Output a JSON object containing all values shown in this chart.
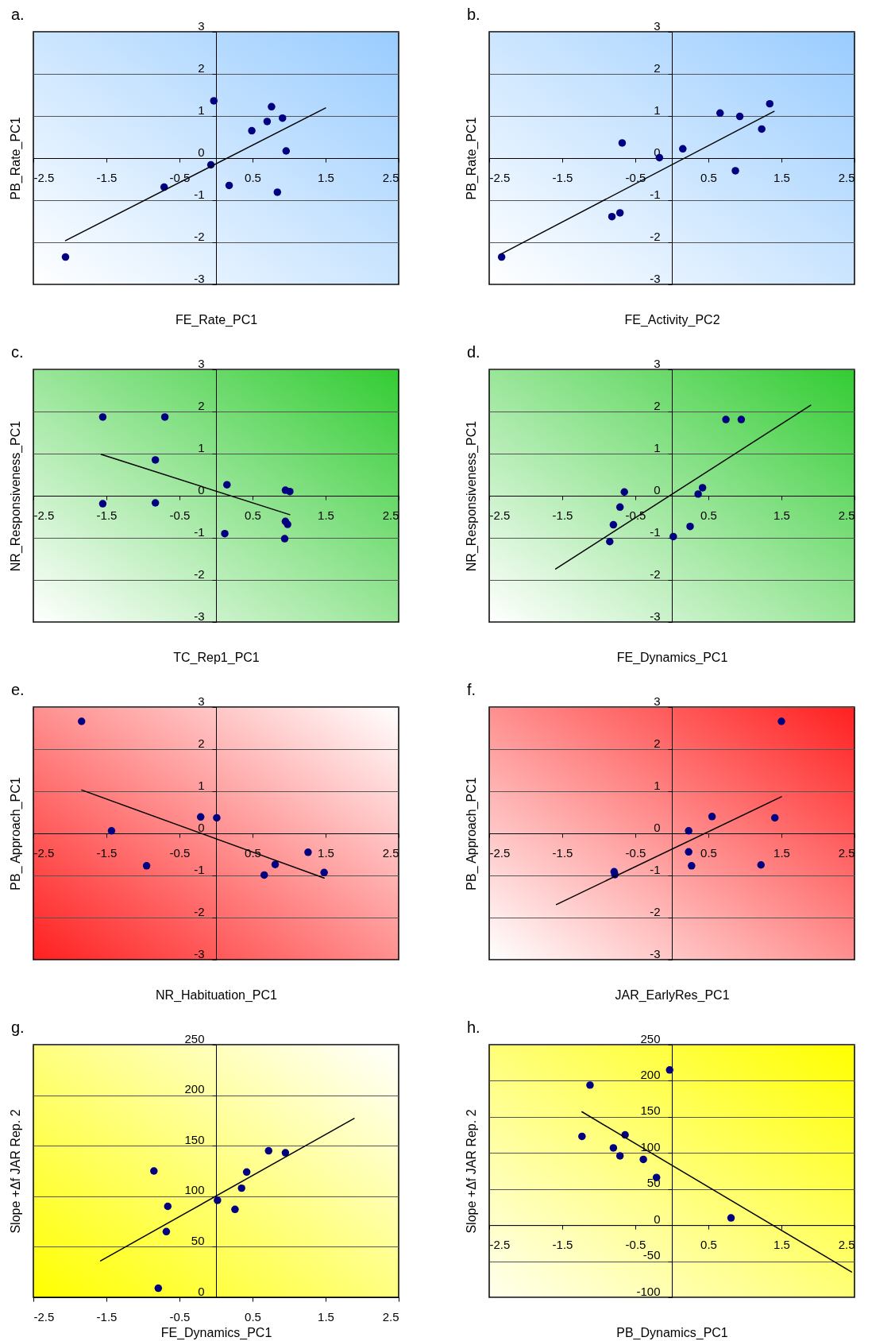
{
  "chart_data": [
    {
      "type": "scatter",
      "title": "a.",
      "xlabel": "FE_Rate_PC1",
      "ylabel": "PB_Rate_PC1",
      "xlim": [
        -2.5,
        2.5
      ],
      "ylim": [
        -3,
        3
      ],
      "xticks": [
        -2.5,
        -1.5,
        -0.5,
        0.5,
        1.5,
        2.5
      ],
      "yticks": [
        -3,
        -2,
        -1,
        0,
        1,
        2,
        3
      ],
      "grid": "y",
      "legend": false,
      "series": [
        {
          "type": "scatter",
          "marker": "circle",
          "color": "#000080",
          "x": [
            -2.06,
            -0.71,
            -0.07,
            -0.03,
            0.18,
            0.49,
            0.7,
            0.76,
            0.91,
            0.96,
            0.84
          ],
          "values": [
            -2.35,
            -0.69,
            -0.16,
            1.36,
            -0.65,
            0.65,
            0.87,
            1.22,
            0.95,
            0.17,
            -0.81
          ]
        },
        {
          "type": "line",
          "marker": "none",
          "color": "#000000",
          "x": [
            -2.06,
            1.5
          ],
          "values": [
            -1.96,
            1.19
          ]
        }
      ]
    },
    {
      "type": "scatter",
      "title": "b.",
      "xlabel": "FE_Activity_PC2",
      "ylabel": "PB_Rate_PC1",
      "xlim": [
        -2.5,
        2.5
      ],
      "ylim": [
        -3,
        3
      ],
      "xticks": [
        -2.5,
        -1.5,
        -0.5,
        0.5,
        1.5,
        2.5
      ],
      "yticks": [
        -3,
        -2,
        -1,
        0,
        1,
        2,
        3
      ],
      "grid": "y",
      "legend": false,
      "series": [
        {
          "type": "scatter",
          "marker": "circle",
          "color": "#000080",
          "x": [
            -2.33,
            -0.82,
            -0.71,
            -0.68,
            -0.17,
            0.15,
            0.66,
            0.87,
            0.93,
            1.23,
            1.34
          ],
          "values": [
            -2.35,
            -1.39,
            -1.3,
            0.36,
            0.01,
            0.22,
            1.07,
            -0.3,
            0.99,
            0.69,
            1.29
          ]
        },
        {
          "type": "line",
          "marker": "none",
          "color": "#000000",
          "x": [
            -2.33,
            1.4
          ],
          "values": [
            -2.27,
            1.11
          ]
        }
      ]
    },
    {
      "type": "scatter",
      "title": "c.",
      "xlabel": "TC_Rep1_PC1",
      "ylabel": "NR_Responsiveness_PC1",
      "xlim": [
        -2.5,
        2.5
      ],
      "ylim": [
        -3,
        3
      ],
      "xticks": [
        -2.5,
        -1.5,
        -0.5,
        0.5,
        1.5,
        2.5
      ],
      "yticks": [
        -3,
        -2,
        -1,
        0,
        1,
        2,
        3
      ],
      "grid": "y",
      "legend": false,
      "series": [
        {
          "type": "scatter",
          "marker": "circle",
          "color": "#000080",
          "x": [
            -1.55,
            -0.7,
            -0.83,
            -1.55,
            -0.83,
            0.15,
            0.12,
            0.95,
            1.01,
            0.95,
            0.98,
            0.94
          ],
          "values": [
            1.87,
            1.87,
            0.85,
            -0.19,
            -0.17,
            0.26,
            -0.9,
            0.13,
            0.1,
            -0.61,
            -0.68,
            -1.02
          ]
        },
        {
          "type": "line",
          "marker": "none",
          "color": "#000000",
          "x": [
            -1.57,
            1.01
          ],
          "values": [
            0.98,
            -0.45
          ]
        }
      ]
    },
    {
      "type": "scatter",
      "title": "d.",
      "xlabel": "FE_Dynamics_PC1",
      "ylabel": "NR_Responsiveness_PC1",
      "xlim": [
        -2.5,
        2.5
      ],
      "ylim": [
        -3,
        3
      ],
      "xticks": [
        -2.5,
        -1.5,
        -0.5,
        0.5,
        1.5,
        2.5
      ],
      "yticks": [
        -3,
        -2,
        -1,
        0,
        1,
        2,
        3
      ],
      "grid": "y",
      "legend": false,
      "series": [
        {
          "type": "scatter",
          "marker": "circle",
          "color": "#000080",
          "x": [
            -0.85,
            -0.8,
            -0.71,
            -0.65,
            0.02,
            0.25,
            0.36,
            0.42,
            0.74,
            0.95
          ],
          "values": [
            -1.09,
            -0.69,
            -0.27,
            0.09,
            -0.97,
            -0.73,
            0.04,
            0.19,
            1.81,
            1.81
          ]
        },
        {
          "type": "line",
          "marker": "none",
          "color": "#000000",
          "x": [
            -1.59,
            1.9
          ],
          "values": [
            -1.74,
            2.15
          ]
        }
      ]
    },
    {
      "type": "scatter",
      "title": "e.",
      "xlabel": "NR_Habituation_PC1",
      "ylabel": "PB_ Approach_PC1",
      "xlim": [
        -2.5,
        2.5
      ],
      "ylim": [
        -3,
        3
      ],
      "xticks": [
        -2.5,
        -1.5,
        -0.5,
        0.5,
        1.5,
        2.5
      ],
      "yticks": [
        -3,
        -2,
        -1,
        0,
        1,
        2,
        3
      ],
      "grid": "y",
      "legend": false,
      "series": [
        {
          "type": "scatter",
          "marker": "circle",
          "color": "#000080",
          "x": [
            -1.84,
            -1.43,
            -0.95,
            -0.21,
            0.01,
            0.66,
            0.81,
            1.26,
            1.48
          ],
          "values": [
            2.66,
            0.06,
            -0.77,
            0.39,
            0.37,
            -0.99,
            -0.74,
            -0.45,
            -0.93
          ]
        },
        {
          "type": "line",
          "marker": "none",
          "color": "#000000",
          "x": [
            -1.84,
            1.48
          ],
          "values": [
            1.03,
            -1.06
          ]
        }
      ]
    },
    {
      "type": "scatter",
      "title": "f.",
      "xlabel": "JAR_EarlyRes_PC1",
      "ylabel": "PB_ Approach_PC1",
      "xlim": [
        -2.5,
        2.5
      ],
      "ylim": [
        -3,
        3
      ],
      "xticks": [
        -2.5,
        -1.5,
        -0.5,
        0.5,
        1.5,
        2.5
      ],
      "yticks": [
        -3,
        -2,
        -1,
        0,
        1,
        2,
        3
      ],
      "grid": "y",
      "legend": false,
      "series": [
        {
          "type": "scatter",
          "marker": "circle",
          "color": "#000080",
          "x": [
            -0.79,
            -0.78,
            0.23,
            0.23,
            0.27,
            0.55,
            1.22,
            1.41,
            1.5
          ],
          "values": [
            -0.91,
            -0.98,
            0.06,
            -0.44,
            -0.77,
            0.4,
            -0.75,
            0.37,
            2.66
          ]
        },
        {
          "type": "line",
          "marker": "none",
          "color": "#000000",
          "x": [
            -1.58,
            1.5
          ],
          "values": [
            -1.69,
            0.87
          ]
        }
      ]
    },
    {
      "type": "scatter",
      "title": "g.",
      "xlabel": "FE_Dynamics_PC1",
      "ylabel": "Slope +Δf JAR Rep. 2",
      "xlim": [
        -2.5,
        2.5
      ],
      "ylim": [
        0,
        250
      ],
      "xticks": [
        -2.5,
        -1.5,
        -0.5,
        0.5,
        1.5,
        2.5
      ],
      "yticks": [
        0,
        50,
        100,
        150,
        200,
        250
      ],
      "grid": "y",
      "legend": false,
      "series": [
        {
          "type": "scatter",
          "marker": "circle",
          "color": "#000080",
          "x": [
            -0.85,
            -0.79,
            -0.66,
            -0.68,
            0.02,
            0.26,
            0.35,
            0.42,
            0.72,
            0.95
          ],
          "values": [
            125,
            9,
            90,
            65,
            96,
            87,
            108,
            124,
            145,
            143
          ]
        },
        {
          "type": "line",
          "marker": "none",
          "color": "#000000",
          "x": [
            -1.58,
            1.89
          ],
          "values": [
            36,
            177
          ]
        }
      ]
    },
    {
      "type": "scatter",
      "title": "h.",
      "xlabel": "PB_Dynamics_PC1",
      "ylabel": "Slope +Δf JAR Rep. 2",
      "xlim": [
        -2.5,
        2.5
      ],
      "ylim": [
        -100,
        250
      ],
      "xticks": [
        -2.5,
        -1.5,
        -0.5,
        0.5,
        1.5,
        2.5
      ],
      "yticks": [
        -100,
        -50,
        0,
        50,
        100,
        150,
        200,
        250
      ],
      "grid": "y",
      "legend": false,
      "series": [
        {
          "type": "scatter",
          "marker": "circle",
          "color": "#000080",
          "x": [
            -1.12,
            -1.23,
            -0.8,
            -0.71,
            -0.64,
            -0.39,
            -0.21,
            -0.03,
            0.81
          ],
          "values": [
            194,
            123,
            107,
            96,
            125,
            91,
            66,
            215,
            10
          ]
        },
        {
          "type": "line",
          "marker": "none",
          "color": "#000000",
          "x": [
            -1.23,
            2.46
          ],
          "values": [
            157,
            -65
          ]
        }
      ]
    }
  ]
}
